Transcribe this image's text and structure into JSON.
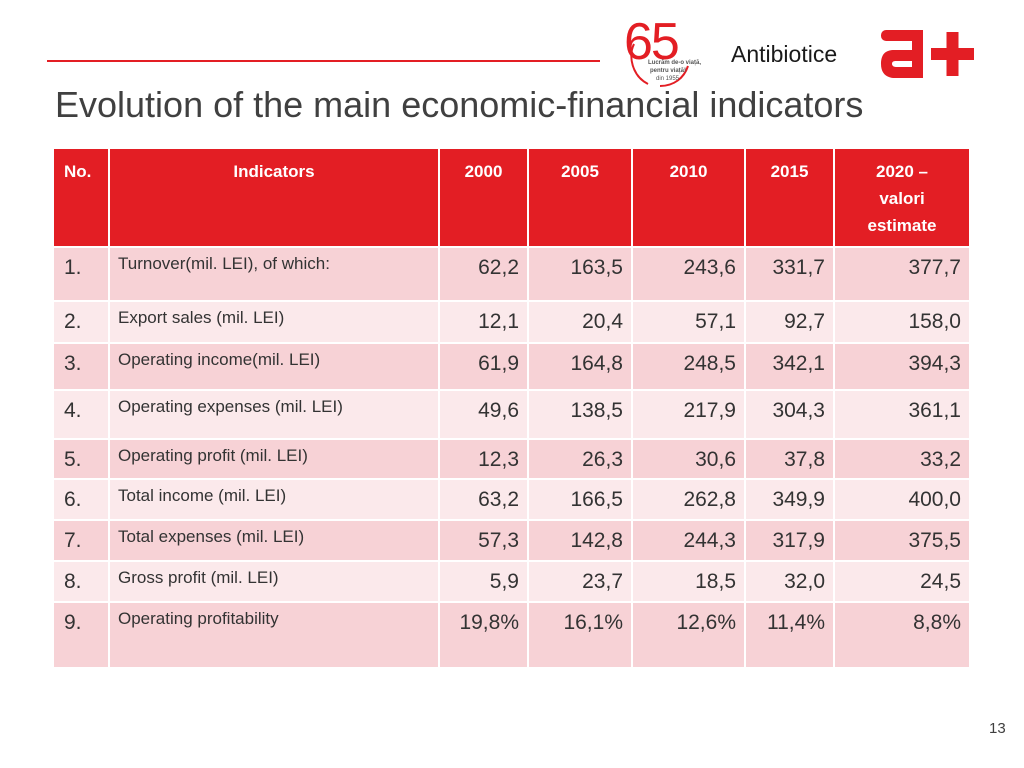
{
  "title": "Evolution of the main economic-financial indicators",
  "brand": {
    "anniversary_number": "65",
    "tagline_1": "Lucrăm de-o viață,",
    "tagline_2": "pentru viață!",
    "since": "din 1955",
    "name": "Antibiotice",
    "mark": "a+",
    "accent_color": "#e31e24"
  },
  "table": {
    "headers": [
      "No.",
      "Indicators",
      "2000",
      "2005",
      "2010",
      "2015",
      "2020 – valori estimate"
    ],
    "rows": [
      {
        "no": "1.",
        "indicator": "Turnover(mil. LEI), of which:",
        "v2000": "62,2",
        "v2005": "163,5",
        "v2010": "243,6",
        "v2015": "331,7",
        "v2020": "377,7"
      },
      {
        "no": "2.",
        "indicator": "Export sales (mil. LEI)",
        "v2000": "12,1",
        "v2005": "20,4",
        "v2010": "57,1",
        "v2015": "92,7",
        "v2020": "158,0"
      },
      {
        "no": "3.",
        "indicator": "Operating income(mil. LEI)",
        "v2000": "61,9",
        "v2005": "164,8",
        "v2010": "248,5",
        "v2015": "342,1",
        "v2020": "394,3"
      },
      {
        "no": "4.",
        "indicator": "Operating expenses (mil. LEI)",
        "v2000": "49,6",
        "v2005": "138,5",
        "v2010": "217,9",
        "v2015": "304,3",
        "v2020": "361,1"
      },
      {
        "no": "5.",
        "indicator": "Operating profit (mil. LEI)",
        "v2000": "12,3",
        "v2005": "26,3",
        "v2010": "30,6",
        "v2015": "37,8",
        "v2020": "33,2"
      },
      {
        "no": "6.",
        "indicator": "Total income (mil. LEI)",
        "v2000": "63,2",
        "v2005": "166,5",
        "v2010": "262,8",
        "v2015": "349,9",
        "v2020": "400,0"
      },
      {
        "no": "7.",
        "indicator": "Total expenses (mil. LEI)",
        "v2000": "57,3",
        "v2005": "142,8",
        "v2010": "244,3",
        "v2015": "317,9",
        "v2020": "375,5"
      },
      {
        "no": "8.",
        "indicator": "Gross profit (mil. LEI)",
        "v2000": "5,9",
        "v2005": "23,7",
        "v2010": "18,5",
        "v2015": "32,0",
        "v2020": "24,5"
      },
      {
        "no": "9.",
        "indicator": "Operating profitability",
        "v2000": "19,8%",
        "v2005": "16,1%",
        "v2010": "12,6%",
        "v2015": "11,4%",
        "v2020": "8,8%"
      }
    ]
  },
  "page_number": "13"
}
